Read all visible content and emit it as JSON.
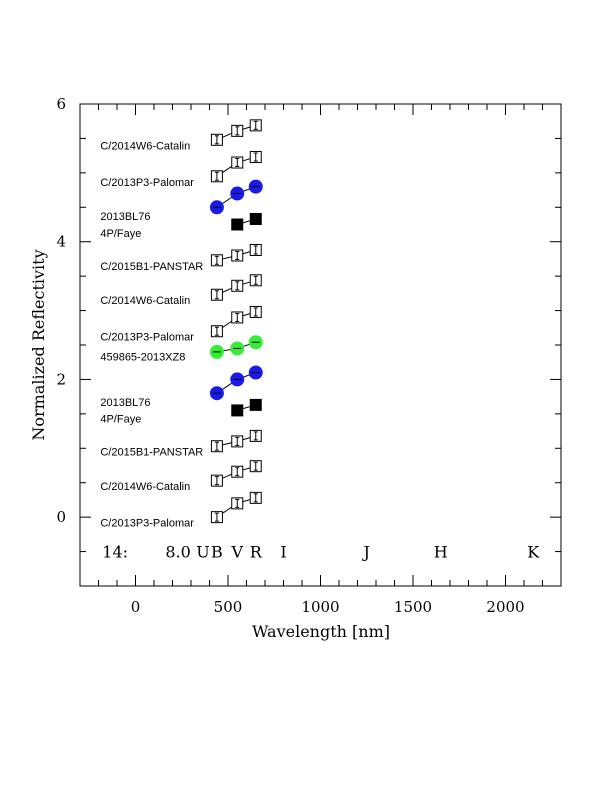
{
  "chart_data": {
    "type": "scatter",
    "xlabel": "Wavelength [nm]",
    "ylabel": "Normalized Reflectivity",
    "xlim": [
      -300,
      2300
    ],
    "ylim": [
      -1,
      6
    ],
    "x_ticks": [
      0,
      500,
      1000,
      1500,
      2000
    ],
    "y_ticks": [
      0,
      2,
      4,
      6
    ],
    "band_row_prefix": "14:",
    "band_row_value": "8.0",
    "bands": [
      {
        "label": "U",
        "x": 365
      },
      {
        "label": "B",
        "x": 440
      },
      {
        "label": "V",
        "x": 550
      },
      {
        "label": "R",
        "x": 650
      },
      {
        "label": "I",
        "x": 800
      },
      {
        "label": "J",
        "x": 1250
      },
      {
        "label": "H",
        "x": 1650
      },
      {
        "label": "K",
        "x": 2150
      }
    ],
    "series": [
      {
        "name": "C/2013P3-Palomar",
        "marker": "open-square",
        "color": "#000000",
        "points": [
          [
            440,
            0.0
          ],
          [
            550,
            0.2
          ],
          [
            650,
            0.28
          ]
        ]
      },
      {
        "name": "C/2014W6-Catalin",
        "marker": "open-square",
        "color": "#000000",
        "points": [
          [
            440,
            0.53
          ],
          [
            550,
            0.66
          ],
          [
            650,
            0.74
          ]
        ]
      },
      {
        "name": "C/2015B1-PANSTAR",
        "marker": "open-square",
        "color": "#000000",
        "points": [
          [
            440,
            1.03
          ],
          [
            550,
            1.1
          ],
          [
            650,
            1.18
          ]
        ]
      },
      {
        "name": "4P/Faye",
        "marker": "filled-square",
        "color": "#000000",
        "points": [
          [
            550,
            1.55
          ],
          [
            650,
            1.63
          ]
        ]
      },
      {
        "name": "2013BL76",
        "marker": "filled-circle",
        "color": "#1a1ae6",
        "points": [
          [
            440,
            1.8
          ],
          [
            550,
            2.0
          ],
          [
            650,
            2.1
          ]
        ]
      },
      {
        "name": "459865-2013XZ8",
        "marker": "filled-circle",
        "color": "#33ee33",
        "points": [
          [
            440,
            2.4
          ],
          [
            550,
            2.45
          ],
          [
            650,
            2.54
          ]
        ]
      },
      {
        "name": "C/2013P3-Palomar",
        "marker": "open-square",
        "color": "#000000",
        "points": [
          [
            440,
            2.7
          ],
          [
            550,
            2.9
          ],
          [
            650,
            2.98
          ]
        ]
      },
      {
        "name": "C/2014W6-Catalin",
        "marker": "open-square",
        "color": "#000000",
        "points": [
          [
            440,
            3.23
          ],
          [
            550,
            3.36
          ],
          [
            650,
            3.44
          ]
        ]
      },
      {
        "name": "C/2015B1-PANSTAR",
        "marker": "open-square",
        "color": "#000000",
        "points": [
          [
            440,
            3.73
          ],
          [
            550,
            3.8
          ],
          [
            650,
            3.88
          ]
        ]
      },
      {
        "name": "4P/Faye",
        "marker": "filled-square",
        "color": "#000000",
        "points": [
          [
            550,
            4.25
          ],
          [
            650,
            4.33
          ]
        ]
      },
      {
        "name": "2013BL76",
        "marker": "filled-circle",
        "color": "#1a1ae6",
        "points": [
          [
            440,
            4.5
          ],
          [
            550,
            4.7
          ],
          [
            650,
            4.8
          ]
        ]
      },
      {
        "name": "C/2013P3-Palomar",
        "marker": "open-square",
        "color": "#000000",
        "points": [
          [
            440,
            4.95
          ],
          [
            550,
            5.15
          ],
          [
            650,
            5.23
          ]
        ]
      },
      {
        "name": "C/2014W6-Catalin",
        "marker": "open-square",
        "color": "#000000",
        "points": [
          [
            440,
            5.48
          ],
          [
            550,
            5.61
          ],
          [
            650,
            5.69
          ]
        ]
      }
    ],
    "labels": [
      {
        "text": "C/2013P3-Palomar",
        "x": -190,
        "y": -0.08
      },
      {
        "text": "C/2014W6-Catalin",
        "x": -190,
        "y": 0.45
      },
      {
        "text": "C/2015B1-PANSTAR",
        "x": -190,
        "y": 0.95
      },
      {
        "text": "4P/Faye",
        "x": -190,
        "y": 1.43
      },
      {
        "text": "2013BL76",
        "x": -190,
        "y": 1.67
      },
      {
        "text": "459865-2013XZ8",
        "x": -190,
        "y": 2.33
      },
      {
        "text": "C/2013P3-Palomar",
        "x": -190,
        "y": 2.62
      },
      {
        "text": "C/2014W6-Catalin",
        "x": -190,
        "y": 3.15
      },
      {
        "text": "C/2015B1-PANSTAR",
        "x": -190,
        "y": 3.65
      },
      {
        "text": "4P/Faye",
        "x": -190,
        "y": 4.13
      },
      {
        "text": "2013BL76",
        "x": -190,
        "y": 4.37
      },
      {
        "text": "C/2013P3-Palomar",
        "x": -190,
        "y": 4.87
      },
      {
        "text": "C/2014W6-Catalin",
        "x": -190,
        "y": 5.4
      }
    ]
  }
}
